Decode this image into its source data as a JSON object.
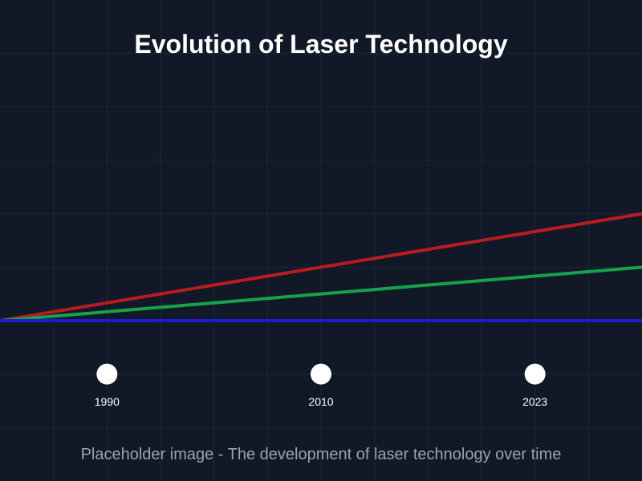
{
  "chart_data": {
    "type": "line",
    "title": "Evolution of Laser Technology",
    "caption": "Placeholder image - The development of laser technology over time",
    "xlabel": "",
    "ylabel": "",
    "grid": true,
    "background_color": "#111827",
    "grid_color": "#1f2937",
    "marker_color": "#ffffff",
    "milestones": [
      "1990",
      "2010",
      "2023"
    ],
    "series": [
      {
        "color": "#b91c1c",
        "start": 0,
        "end": 2
      },
      {
        "color": "#16a34a",
        "start": 0,
        "end": 1
      },
      {
        "color": "#1d1dcc",
        "start": 0,
        "end": 0
      }
    ]
  }
}
